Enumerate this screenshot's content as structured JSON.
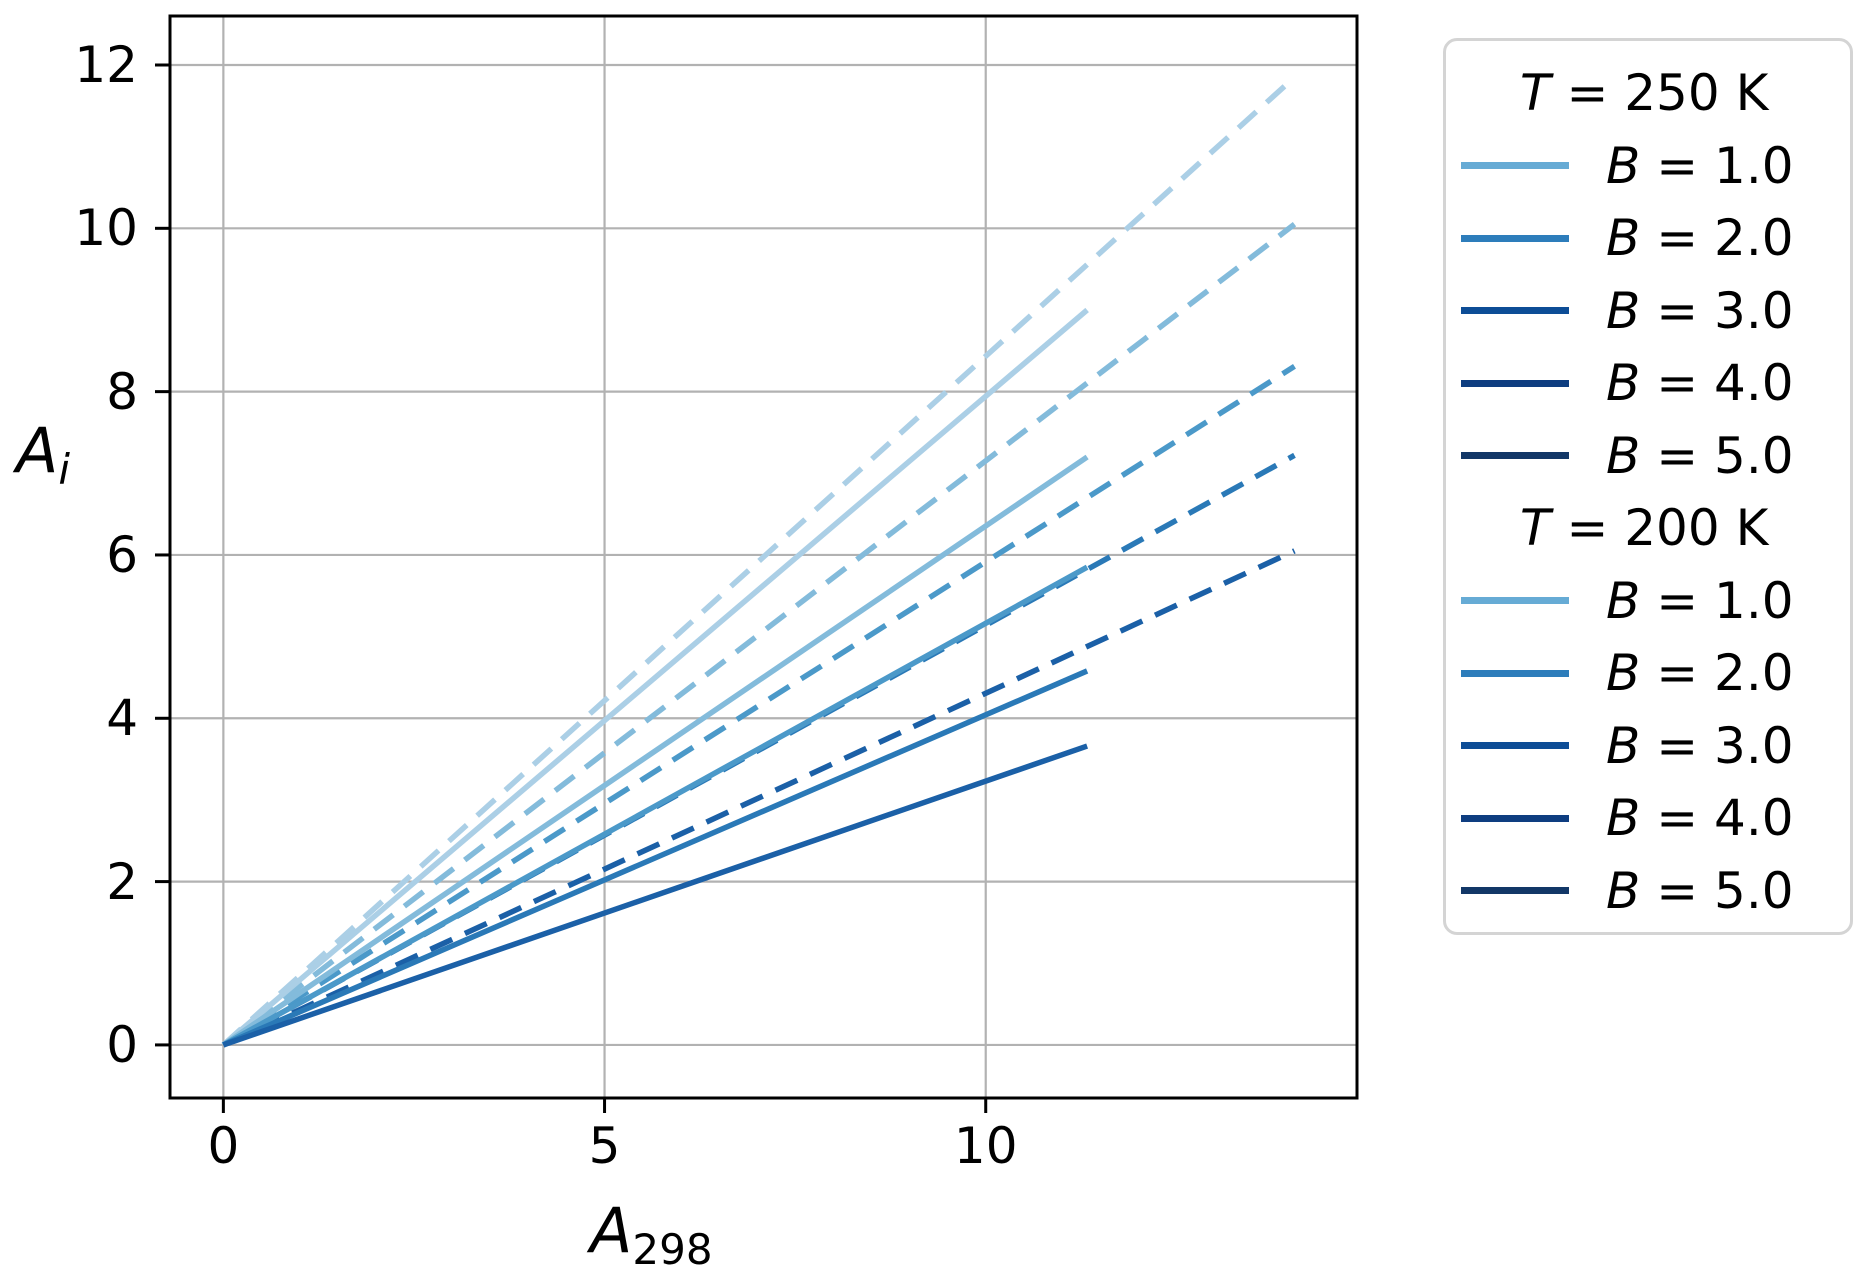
{
  "figure": {
    "background": "#ffffff"
  },
  "chart_data": {
    "type": "line",
    "title": "",
    "xlabel": {
      "base": "A",
      "sub": "298",
      "sub_italic": false
    },
    "ylabel": {
      "base": "A",
      "sub": "i",
      "sub_italic": true
    },
    "xlim": [
      -0.7,
      14.87
    ],
    "ylim": [
      -0.65,
      12.6
    ],
    "x_ticks": [
      {
        "value": 0,
        "label": "0"
      },
      {
        "value": 5,
        "label": "5"
      },
      {
        "value": 10,
        "label": "10"
      }
    ],
    "y_ticks": [
      {
        "value": 0,
        "label": "0"
      },
      {
        "value": 2,
        "label": "2"
      },
      {
        "value": 4,
        "label": "4"
      },
      {
        "value": 6,
        "label": "6"
      },
      {
        "value": 8,
        "label": "8"
      },
      {
        "value": 10,
        "label": "10"
      },
      {
        "value": 12,
        "label": "12"
      }
    ],
    "grid": true,
    "grid_color": "#b2b2b2",
    "spine_color": "#000000",
    "legend_position": "outside right",
    "series": [
      {
        "group": "T = 250 K",
        "label": "B = 1.0",
        "linestyle": "dashed",
        "color": "#abcfe6",
        "x": [
          0,
          14.05
        ],
        "y": [
          0,
          11.85
        ]
      },
      {
        "group": "T = 250 K",
        "label": "B = 2.0",
        "linestyle": "dashed",
        "color": "#83bbdb",
        "x": [
          0,
          14.05
        ],
        "y": [
          0,
          10.05
        ]
      },
      {
        "group": "T = 250 K",
        "label": "B = 3.0",
        "linestyle": "dashed",
        "color": "#4b99c9",
        "x": [
          0,
          14.05
        ],
        "y": [
          0,
          8.31
        ]
      },
      {
        "group": "T = 250 K",
        "label": "B = 4.0",
        "linestyle": "dashed",
        "color": "#2a79b7",
        "x": [
          0,
          14.05
        ],
        "y": [
          0,
          7.22
        ]
      },
      {
        "group": "T = 250 K",
        "label": "B = 5.0",
        "linestyle": "dashed",
        "color": "#1b60a7",
        "x": [
          0,
          14.05
        ],
        "y": [
          0,
          6.05
        ]
      },
      {
        "group": "T = 200 K",
        "label": "B = 1.0",
        "linestyle": "solid",
        "color": "#abcfe6",
        "x": [
          0,
          11.33
        ],
        "y": [
          0,
          9.0
        ]
      },
      {
        "group": "T = 200 K",
        "label": "B = 2.0",
        "linestyle": "solid",
        "color": "#83bbdb",
        "x": [
          0,
          11.33
        ],
        "y": [
          0,
          7.2
        ]
      },
      {
        "group": "T = 200 K",
        "label": "B = 3.0",
        "linestyle": "solid",
        "color": "#4b99c9",
        "x": [
          0,
          11.33
        ],
        "y": [
          0,
          5.85
        ]
      },
      {
        "group": "T = 200 K",
        "label": "B = 4.0",
        "linestyle": "solid",
        "color": "#2a79b7",
        "x": [
          0,
          11.33
        ],
        "y": [
          0,
          4.58
        ]
      },
      {
        "group": "T = 200 K",
        "label": "B = 5.0",
        "linestyle": "solid",
        "color": "#1b60a7",
        "x": [
          0,
          11.33
        ],
        "y": [
          0,
          3.66
        ]
      }
    ],
    "legend": {
      "groups": [
        {
          "header": {
            "var": "T",
            "rest": "= 250 K"
          },
          "items": [
            {
              "var": "B",
              "rest": "= 1.0",
              "swatch_color": "#66abd5"
            },
            {
              "var": "B",
              "rest": "= 2.0",
              "swatch_color": "#2d7dbb"
            },
            {
              "var": "B",
              "rest": "= 3.0",
              "swatch_color": "#0d4d96"
            },
            {
              "var": "B",
              "rest": "= 4.0",
              "swatch_color": "#0e3d80"
            },
            {
              "var": "B",
              "rest": "= 5.0",
              "swatch_color": "#123767"
            }
          ]
        },
        {
          "header": {
            "var": "T",
            "rest": "= 200 K"
          },
          "items": [
            {
              "var": "B",
              "rest": "= 1.0",
              "swatch_color": "#66abd5"
            },
            {
              "var": "B",
              "rest": "= 2.0",
              "swatch_color": "#2d7dbb"
            },
            {
              "var": "B",
              "rest": "= 3.0",
              "swatch_color": "#0d4d96"
            },
            {
              "var": "B",
              "rest": "= 4.0",
              "swatch_color": "#0e3d80"
            },
            {
              "var": "B",
              "rest": "= 5.0",
              "swatch_color": "#123767"
            }
          ]
        }
      ]
    }
  }
}
